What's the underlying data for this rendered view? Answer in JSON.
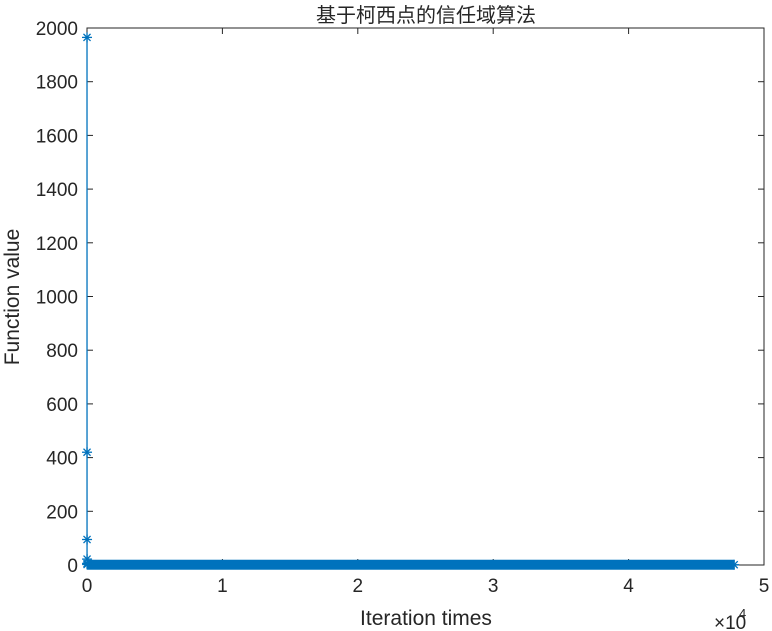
{
  "chart_data": {
    "type": "line",
    "title": "基于柯西点的信任域算法",
    "xlabel": "Iteration times",
    "ylabel": "Function value",
    "xlim": [
      0,
      5
    ],
    "ylim": [
      0,
      2000
    ],
    "x_multiplier": {
      "times": "×10",
      "exponent": "4"
    },
    "xticks": [
      "0",
      "1",
      "2",
      "3",
      "4",
      "5"
    ],
    "yticks": [
      "0",
      "200",
      "400",
      "600",
      "800",
      "1000",
      "1200",
      "1400",
      "1600",
      "1800",
      "2000"
    ],
    "grid": false,
    "marker": "asterisk",
    "color": "#0072BD",
    "series": [
      {
        "x": [
          0.0001,
          0.0002,
          0.0003,
          0.0004,
          0.0005,
          0.0006
        ],
        "y": [
          1965,
          420,
          95,
          22,
          6,
          2
        ]
      },
      {
        "x_range": [
          0.0006,
          4.78
        ],
        "y_value": 1
      }
    ]
  }
}
